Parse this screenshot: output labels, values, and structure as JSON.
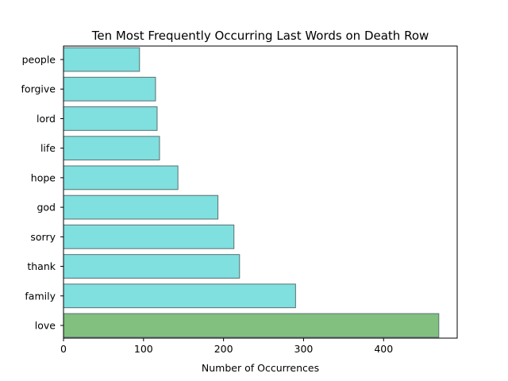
{
  "chart_data": {
    "type": "bar",
    "orientation": "horizontal",
    "title": "Ten Most Frequently Occurring Last Words on Death Row",
    "xlabel": "Number of Occurrences",
    "ylabel": "",
    "categories": [
      "love",
      "family",
      "thank",
      "sorry",
      "god",
      "hope",
      "life",
      "lord",
      "forgive",
      "people"
    ],
    "values": [
      469,
      290,
      220,
      213,
      193,
      143,
      120,
      117,
      115,
      95
    ],
    "xlim": [
      0,
      492
    ],
    "xticks": [
      0,
      100,
      200,
      300,
      400
    ],
    "grid": false,
    "legend": "none",
    "colors": {
      "highlight_fill": "#81c07f",
      "default_fill": "#80dfdf",
      "bar_edge": "#5b7070",
      "axis": "#000000"
    },
    "highlight_index": 0
  }
}
